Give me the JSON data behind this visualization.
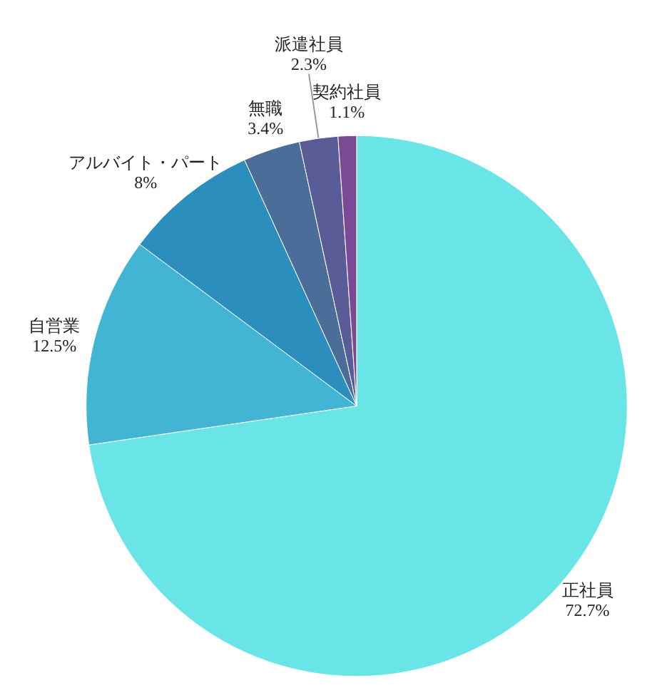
{
  "chart_data": {
    "type": "pie",
    "categories": [
      "正社員",
      "自営業",
      "アルバイト・パート",
      "無職",
      "派遣社員",
      "契約社員"
    ],
    "values": [
      72.7,
      12.5,
      8,
      3.4,
      2.3,
      1.1
    ],
    "value_labels": [
      "72.7%",
      "12.5%",
      "8%",
      "3.4%",
      "2.3%",
      "1.1%"
    ],
    "colors": [
      "#69e5e8",
      "#42b5d4",
      "#2b8ebd",
      "#4a6d9a",
      "#5a5c98",
      "#7a4a96"
    ],
    "legend": false
  }
}
